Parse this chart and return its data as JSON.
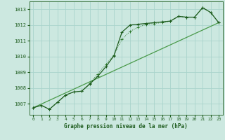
{
  "title": "Graphe pression niveau de la mer (hPa)",
  "bg_color": "#cce8e0",
  "grid_color": "#aad4cc",
  "line_color_dark": "#1e5c1e",
  "line_color_mid": "#2d7a2d",
  "line_color_light": "#4a9a4a",
  "xlim": [
    -0.5,
    23.5
  ],
  "ylim": [
    1006.3,
    1013.5
  ],
  "yticks": [
    1007,
    1008,
    1009,
    1010,
    1011,
    1012,
    1013
  ],
  "xticks": [
    0,
    1,
    2,
    3,
    4,
    5,
    6,
    7,
    8,
    9,
    10,
    11,
    12,
    13,
    14,
    15,
    16,
    17,
    18,
    19,
    20,
    21,
    22,
    23
  ],
  "series1_x": [
    0,
    1,
    2,
    3,
    4,
    5,
    6,
    7,
    8,
    9,
    10,
    11,
    12,
    13,
    14,
    15,
    16,
    17,
    18,
    19,
    20,
    21,
    22,
    23
  ],
  "series1_y": [
    1006.75,
    1006.9,
    1006.65,
    1007.1,
    1007.55,
    1007.75,
    1007.8,
    1008.25,
    1008.75,
    1009.35,
    1010.05,
    1011.55,
    1012.0,
    1012.05,
    1012.1,
    1012.15,
    1012.2,
    1012.25,
    1012.55,
    1012.5,
    1012.5,
    1013.1,
    1012.8,
    1012.15
  ],
  "series2_x": [
    0,
    1,
    2,
    3,
    4,
    5,
    6,
    7,
    8,
    9,
    10,
    11,
    12,
    13,
    14,
    15,
    16,
    17,
    18,
    19,
    20,
    21,
    22,
    23
  ],
  "series2_y": [
    1006.75,
    1006.9,
    1006.65,
    1007.1,
    1007.55,
    1007.75,
    1007.8,
    1008.3,
    1008.9,
    1009.5,
    1010.1,
    1011.1,
    1011.6,
    1011.85,
    1012.05,
    1012.1,
    1012.15,
    1012.25,
    1012.55,
    1012.5,
    1012.5,
    1013.1,
    1012.8,
    1012.15
  ],
  "series3_x": [
    0,
    23
  ],
  "series3_y": [
    1006.75,
    1012.15
  ]
}
